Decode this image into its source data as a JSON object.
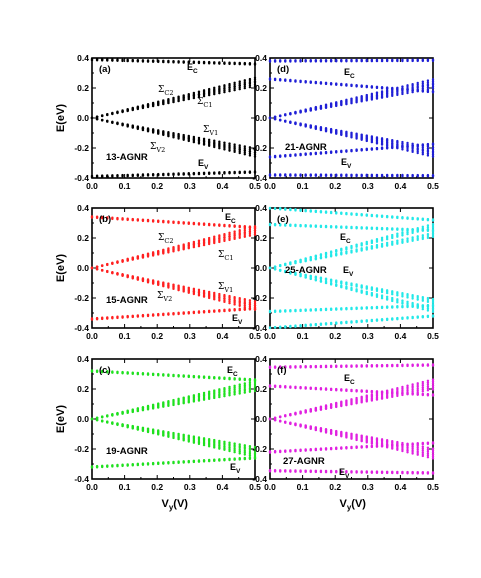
{
  "chart_data": [
    {
      "panel": "(a)",
      "type": "scatter",
      "label": "13-AGNR",
      "color": "#000000",
      "xlabel": "",
      "ylabel": "E(eV)",
      "xlim": [
        0.0,
        0.5
      ],
      "ylim": [
        -0.4,
        0.4
      ],
      "xticks": [
        "0.0",
        "0.1",
        "0.2",
        "0.3",
        "0.4",
        "0.5"
      ],
      "yticks": [
        "-0.4",
        "-0.2",
        "0.0",
        "0.2",
        "0.4"
      ],
      "annotations": [
        {
          "base": "E",
          "sub": "C"
        },
        {
          "base": "Σ",
          "sub": "C2"
        },
        {
          "base": "Σ",
          "sub": "C1"
        },
        {
          "base": "Σ",
          "sub": "V1"
        },
        {
          "base": "Σ",
          "sub": "V2"
        },
        {
          "base": "E",
          "sub": "V"
        }
      ],
      "series": [
        {
          "x": [
            0.0,
            0.5
          ],
          "y": [
            0.39,
            0.36
          ]
        },
        {
          "x": [
            0.0,
            0.5
          ],
          "y": [
            0.0,
            0.255
          ]
        },
        {
          "x": [
            0.0,
            0.5
          ],
          "y": [
            0.0,
            0.225
          ]
        },
        {
          "x": [
            0.0,
            0.5
          ],
          "y": [
            0.0,
            -0.215
          ]
        },
        {
          "x": [
            0.0,
            0.5
          ],
          "y": [
            0.0,
            -0.245
          ]
        },
        {
          "x": [
            0.0,
            0.5
          ],
          "y": [
            -0.39,
            -0.36
          ]
        }
      ]
    },
    {
      "panel": "(d)",
      "type": "scatter",
      "label": "21-AGNR",
      "color": "#1f1fd6",
      "xlabel": "",
      "ylabel": "",
      "xlim": [
        0.0,
        0.5
      ],
      "ylim": [
        -0.4,
        0.4
      ],
      "xticks": [
        "0.0",
        "0.1",
        "0.2",
        "0.3",
        "0.4",
        "0.5"
      ],
      "yticks": [
        "-0.4",
        "-0.2",
        "0.0",
        "0.2",
        "0.4"
      ],
      "annotations": [
        {
          "base": "E",
          "sub": "C"
        },
        {
          "base": "E",
          "sub": "V"
        }
      ],
      "series": [
        {
          "x": [
            0.0,
            0.5
          ],
          "y": [
            0.38,
            0.385
          ]
        },
        {
          "x": [
            0.0,
            0.5
          ],
          "y": [
            0.26,
            0.175
          ]
        },
        {
          "x": [
            0.0,
            0.5
          ],
          "y": [
            0.0,
            0.245
          ]
        },
        {
          "x": [
            0.0,
            0.5
          ],
          "y": [
            0.0,
            0.21
          ]
        },
        {
          "x": [
            0.0,
            0.5
          ],
          "y": [
            0.0,
            -0.21
          ]
        },
        {
          "x": [
            0.0,
            0.5
          ],
          "y": [
            0.0,
            -0.245
          ]
        },
        {
          "x": [
            0.0,
            0.5
          ],
          "y": [
            -0.26,
            -0.175
          ]
        },
        {
          "x": [
            0.0,
            0.5
          ],
          "y": [
            -0.38,
            -0.385
          ]
        }
      ]
    },
    {
      "panel": "(b)",
      "type": "scatter",
      "label": "15-AGNR",
      "color": "#ff2020",
      "xlabel": "",
      "ylabel": "E(eV)",
      "xlim": [
        0.0,
        0.5
      ],
      "ylim": [
        -0.4,
        0.4
      ],
      "xticks": [
        "0.0",
        "0.1",
        "0.2",
        "0.3",
        "0.4",
        "0.5"
      ],
      "yticks": [
        "-0.4",
        "-0.2",
        "0.0",
        "0.2",
        "0.4"
      ],
      "annotations": [
        {
          "base": "E",
          "sub": "C"
        },
        {
          "base": "Σ",
          "sub": "C2"
        },
        {
          "base": "Σ",
          "sub": "C1"
        },
        {
          "base": "Σ",
          "sub": "V1"
        },
        {
          "base": "Σ",
          "sub": "V2"
        },
        {
          "base": "E",
          "sub": "V"
        }
      ],
      "series": [
        {
          "x": [
            0.0,
            0.5
          ],
          "y": [
            0.34,
            0.27
          ]
        },
        {
          "x": [
            0.0,
            0.5
          ],
          "y": [
            0.0,
            0.265
          ]
        },
        {
          "x": [
            0.0,
            0.5
          ],
          "y": [
            0.0,
            0.235
          ]
        },
        {
          "x": [
            0.0,
            0.5
          ],
          "y": [
            0.0,
            -0.235
          ]
        },
        {
          "x": [
            0.0,
            0.5
          ],
          "y": [
            0.0,
            -0.265
          ]
        },
        {
          "x": [
            0.0,
            0.5
          ],
          "y": [
            -0.34,
            -0.27
          ]
        }
      ]
    },
    {
      "panel": "(e)",
      "type": "scatter",
      "label": "25-AGNR",
      "color": "#22e8e8",
      "xlabel": "",
      "ylabel": "",
      "xlim": [
        0.0,
        0.5
      ],
      "ylim": [
        -0.4,
        0.4
      ],
      "xticks": [
        "0.0",
        "0.1",
        "0.2",
        "0.3",
        "0.4",
        "0.5"
      ],
      "yticks": [
        "-0.4",
        "-0.2",
        "0.0",
        "0.2",
        "0.4"
      ],
      "annotations": [
        {
          "base": "E",
          "sub": "C"
        },
        {
          "base": "E",
          "sub": "V"
        }
      ],
      "series": [
        {
          "x": [
            0.0,
            0.5
          ],
          "y": [
            0.4,
            0.32
          ]
        },
        {
          "x": [
            0.0,
            0.5
          ],
          "y": [
            0.29,
            0.25
          ]
        },
        {
          "x": [
            0.0,
            0.5
          ],
          "y": [
            0.0,
            0.28
          ]
        },
        {
          "x": [
            0.0,
            0.5
          ],
          "y": [
            0.0,
            0.22
          ]
        },
        {
          "x": [
            0.0,
            0.5
          ],
          "y": [
            0.0,
            -0.22
          ]
        },
        {
          "x": [
            0.0,
            0.5
          ],
          "y": [
            0.0,
            -0.28
          ]
        },
        {
          "x": [
            0.0,
            0.5
          ],
          "y": [
            -0.29,
            -0.25
          ]
        },
        {
          "x": [
            0.0,
            0.5
          ],
          "y": [
            -0.4,
            -0.32
          ]
        }
      ]
    },
    {
      "panel": "(c)",
      "type": "scatter",
      "label": "19-AGNR",
      "color": "#1ee01e",
      "xlabel": "V_y(V)",
      "ylabel": "E(eV)",
      "xlim": [
        0.0,
        0.5
      ],
      "ylim": [
        -0.4,
        0.4
      ],
      "xticks": [
        "0.0",
        "0.1",
        "0.2",
        "0.3",
        "0.4",
        "0.5"
      ],
      "yticks": [
        "-0.4",
        "-0.2",
        "0.0",
        "0.2",
        "0.4"
      ],
      "annotations": [
        {
          "base": "E",
          "sub": "C"
        },
        {
          "base": "E",
          "sub": "V"
        }
      ],
      "series": [
        {
          "x": [
            0.0,
            0.5
          ],
          "y": [
            0.32,
            0.26
          ]
        },
        {
          "x": [
            0.0,
            0.5
          ],
          "y": [
            0.0,
            0.24
          ]
        },
        {
          "x": [
            0.0,
            0.5
          ],
          "y": [
            0.0,
            0.2
          ]
        },
        {
          "x": [
            0.0,
            0.5
          ],
          "y": [
            0.0,
            -0.2
          ]
        },
        {
          "x": [
            0.0,
            0.5
          ],
          "y": [
            0.0,
            -0.24
          ]
        },
        {
          "x": [
            0.0,
            0.5
          ],
          "y": [
            -0.32,
            -0.26
          ]
        }
      ]
    },
    {
      "panel": "(f)",
      "type": "scatter",
      "label": "27-AGNR",
      "color": "#e020e0",
      "xlabel": "V_y(V)",
      "ylabel": "",
      "xlim": [
        0.0,
        0.5
      ],
      "ylim": [
        -0.4,
        0.4
      ],
      "xticks": [
        "0.0",
        "0.1",
        "0.2",
        "0.3",
        "0.4",
        "0.5"
      ],
      "yticks": [
        "-0.4",
        "-0.2",
        "0.0",
        "0.2",
        "0.4"
      ],
      "annotations": [
        {
          "base": "E",
          "sub": "C"
        },
        {
          "base": "E",
          "sub": "V"
        }
      ],
      "series": [
        {
          "x": [
            0.0,
            0.5
          ],
          "y": [
            0.345,
            0.36
          ]
        },
        {
          "x": [
            0.0,
            0.5
          ],
          "y": [
            0.22,
            0.16
          ]
        },
        {
          "x": [
            0.0,
            0.5
          ],
          "y": [
            0.0,
            0.25
          ]
        },
        {
          "x": [
            0.0,
            0.5
          ],
          "y": [
            0.0,
            0.21
          ]
        },
        {
          "x": [
            0.0,
            0.5
          ],
          "y": [
            0.0,
            -0.21
          ]
        },
        {
          "x": [
            0.0,
            0.5
          ],
          "y": [
            0.0,
            -0.25
          ]
        },
        {
          "x": [
            0.0,
            0.5
          ],
          "y": [
            -0.22,
            -0.16
          ]
        },
        {
          "x": [
            0.0,
            0.5
          ],
          "y": [
            -0.345,
            -0.36
          ]
        }
      ]
    }
  ]
}
